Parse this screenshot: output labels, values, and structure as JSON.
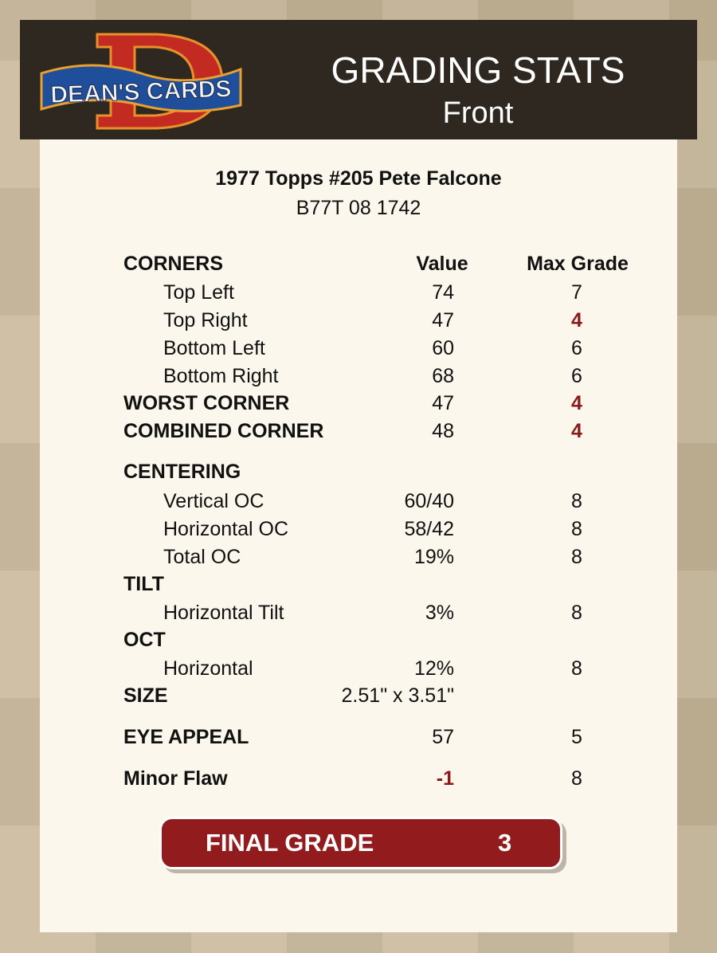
{
  "header": {
    "logo_text": "DEAN'S CARDS",
    "title": "GRADING STATS",
    "subtitle": "Front"
  },
  "card": {
    "title": "1977 Topps #205 Pete Falcone",
    "code": "B77T 08 1742"
  },
  "columns": {
    "value": "Value",
    "max_grade": "Max Grade"
  },
  "colors": {
    "header_bg": "#2f2821",
    "panel_bg": "#fcf7ed",
    "accent_red": "#921b1d",
    "low_grade": "#8b1a1a"
  },
  "rows": [
    {
      "label": "CORNERS",
      "style": "header"
    },
    {
      "label": "Top Left",
      "style": "sub",
      "value": "74",
      "max": "7"
    },
    {
      "label": "Top Right",
      "style": "sub",
      "value": "47",
      "max": "4",
      "max_flag": true
    },
    {
      "label": "Bottom Left",
      "style": "sub",
      "value": "60",
      "max": "6"
    },
    {
      "label": "Bottom Right",
      "style": "sub",
      "value": "68",
      "max": "6"
    },
    {
      "label": "WORST CORNER",
      "style": "bold",
      "value": "47",
      "max": "4",
      "max_flag": true
    },
    {
      "label": "COMBINED CORNER",
      "style": "bold",
      "value": "48",
      "max": "4",
      "max_flag": true
    },
    {
      "label": "CENTERING",
      "style": "bold"
    },
    {
      "label": "Vertical OC",
      "style": "sub",
      "value": "60/40",
      "max": "8"
    },
    {
      "label": "Horizontal OC",
      "style": "sub",
      "value": "58/42",
      "max": "8"
    },
    {
      "label": "Total OC",
      "style": "sub",
      "value": "19%",
      "max": "8"
    },
    {
      "label": "TILT",
      "style": "bold"
    },
    {
      "label": "Horizontal Tilt",
      "style": "sub",
      "value": "3%",
      "max": "8"
    },
    {
      "label": "OCT",
      "style": "bold"
    },
    {
      "label": "Horizontal",
      "style": "sub",
      "value": "12%",
      "max": "8"
    },
    {
      "label": "SIZE",
      "style": "bold",
      "value": "2.51\" x 3.51\""
    },
    {
      "label": "EYE APPEAL",
      "style": "bold",
      "value": "57",
      "max": "5"
    },
    {
      "label": "Minor Flaw",
      "style": "bold",
      "value": "-1",
      "value_flag": true,
      "max": "8"
    }
  ],
  "final": {
    "label": "FINAL GRADE",
    "value": "3"
  }
}
